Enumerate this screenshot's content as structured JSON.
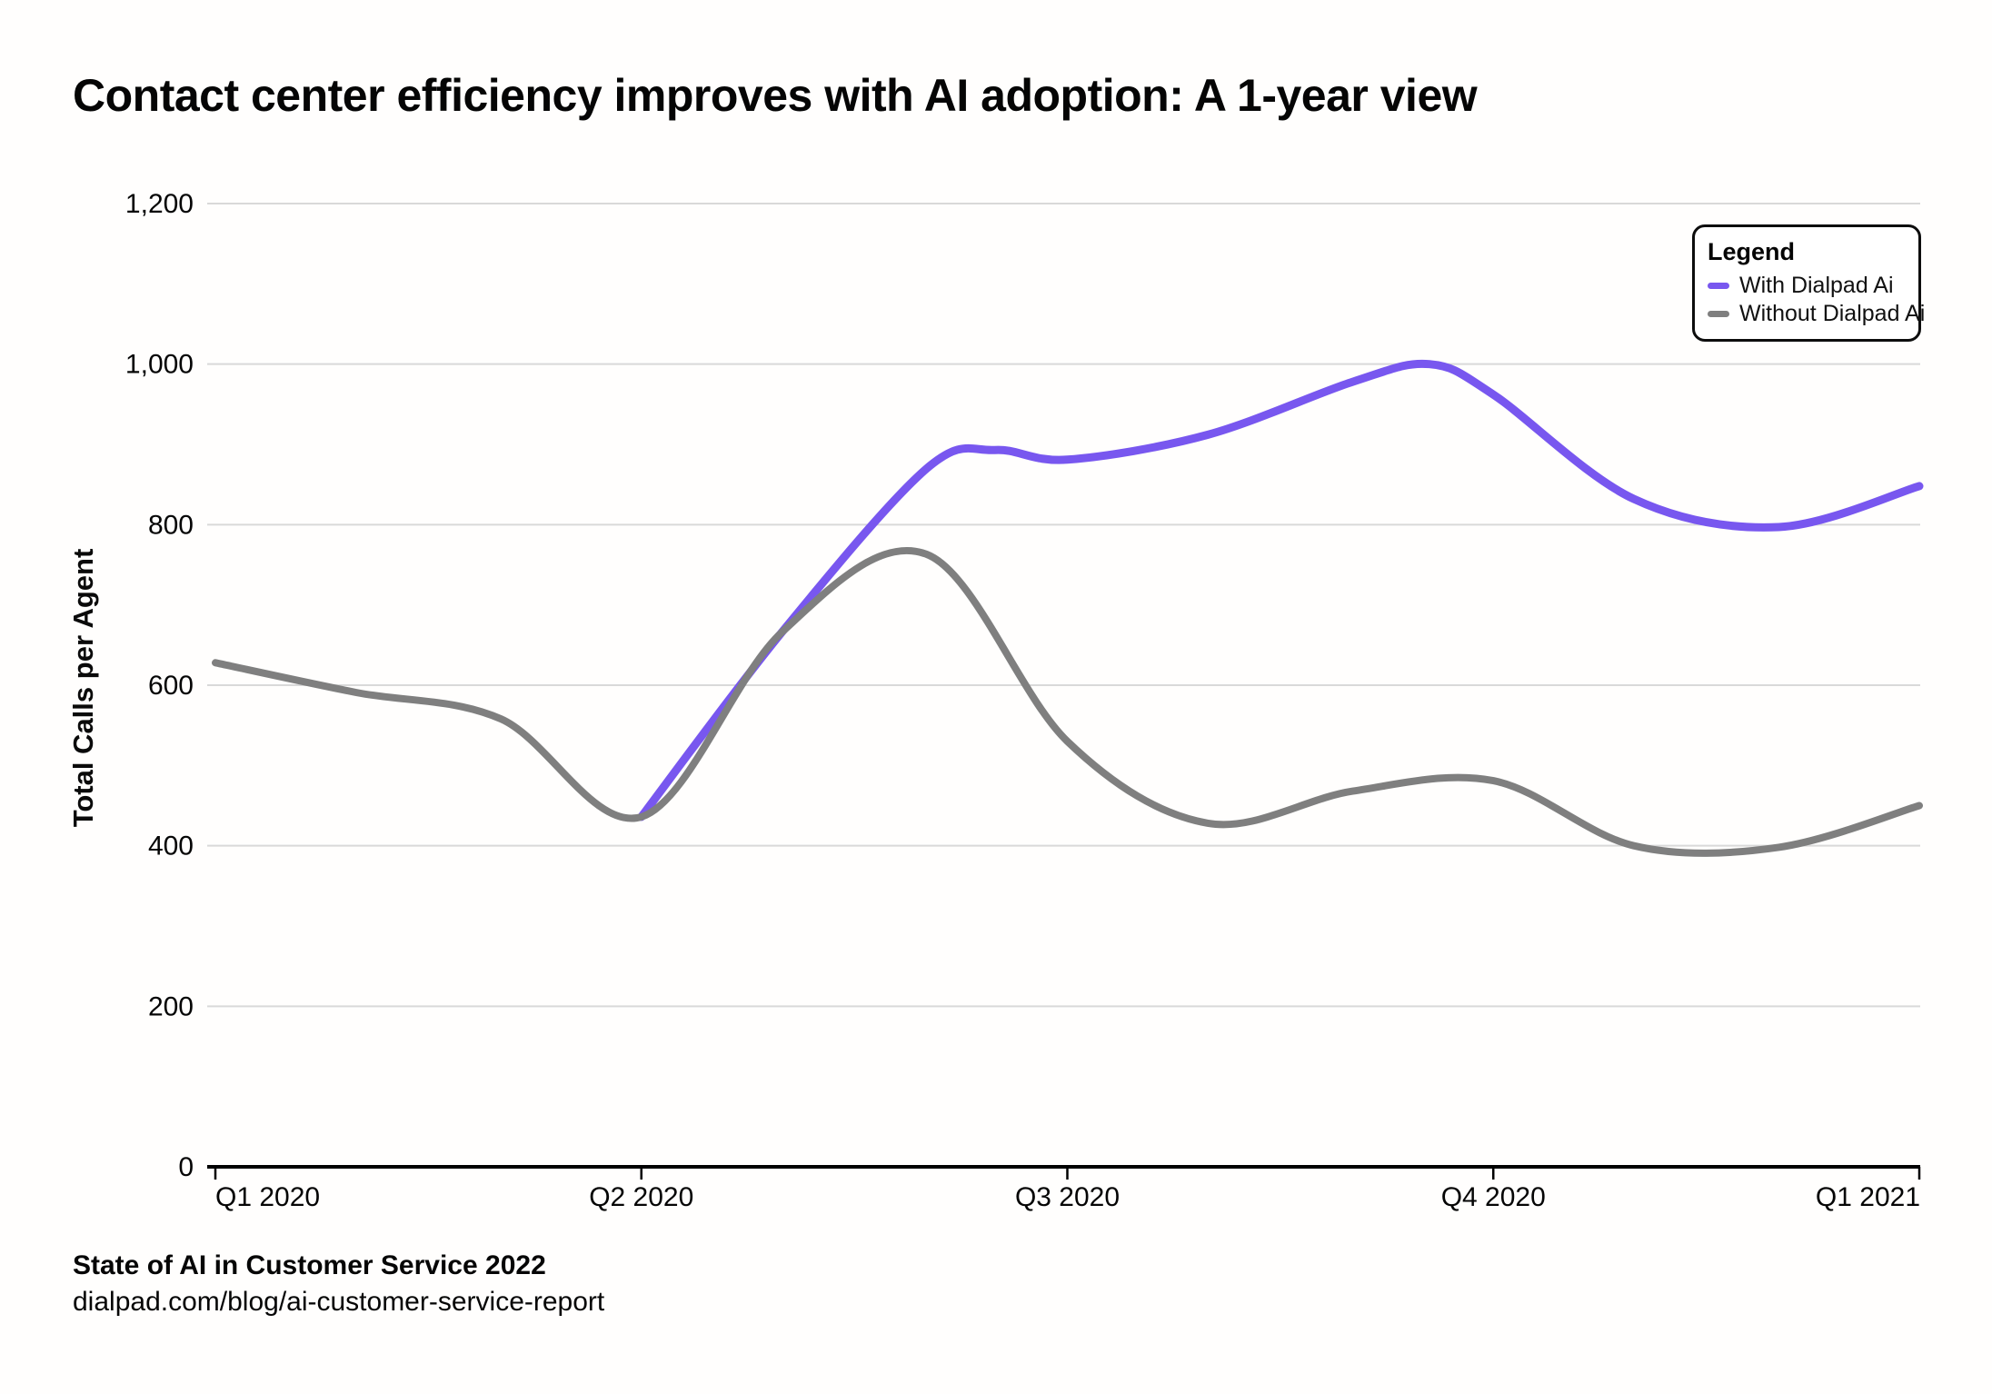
{
  "title": "Contact center efficiency improves with AI adoption: A 1-year view",
  "y_axis": {
    "title": "Total Calls per Agent",
    "ticks": [
      "0",
      "200",
      "400",
      "600",
      "800",
      "1,000",
      "1,200"
    ]
  },
  "x_axis": {
    "ticks": [
      "Q1 2020",
      "Q2 2020",
      "Q3 2020",
      "Q4 2020",
      "Q1 2021"
    ]
  },
  "legend": {
    "title": "Legend",
    "items": [
      {
        "label": "With Dialpad Ai",
        "color": "#7857ef"
      },
      {
        "label": "Without Dialpad Ai",
        "color": "#7f7f7f"
      }
    ]
  },
  "source": {
    "line1": "State of AI in Customer Service 2022",
    "line2": "dialpad.com/blog/ai-customer-service-report"
  },
  "colors": {
    "with_ai": "#7857ef",
    "without_ai": "#7f7f7f",
    "gridline": "#d9d9d9",
    "axis": "#000000",
    "text": "#050505",
    "background": "#ffffff"
  },
  "chart_data": {
    "type": "line",
    "title": "Contact center efficiency improves with AI adoption: A 1-year view",
    "xlabel": "",
    "ylabel": "Total Calls per Agent",
    "ylim": [
      0,
      1200
    ],
    "y_tick_step": 200,
    "grid": "horizontal",
    "legend_position": "top-right",
    "x_categories": [
      "Q1 2020",
      "Q2 2020",
      "Q3 2020",
      "Q4 2020",
      "Q1 2021"
    ],
    "x_tick_positions": [
      0,
      1,
      2,
      3,
      4
    ],
    "x_units": "quarters from Q1 2020 (0 = Q1 2020, 4 = Q1 2021)",
    "series": [
      {
        "name": "With Dialpad Ai",
        "color": "#7857ef",
        "points": [
          [
            1.0,
            436
          ],
          [
            1.33,
            666
          ],
          [
            1.67,
            870
          ],
          [
            1.83,
            893
          ],
          [
            2.0,
            881
          ],
          [
            2.33,
            912
          ],
          [
            2.67,
            978
          ],
          [
            2.85,
            1000
          ],
          [
            3.0,
            962
          ],
          [
            3.33,
            832
          ],
          [
            3.67,
            797
          ],
          [
            4.0,
            848
          ]
        ]
      },
      {
        "name": "Without Dialpad Ai",
        "color": "#7f7f7f",
        "points": [
          [
            0.0,
            628
          ],
          [
            0.33,
            591
          ],
          [
            0.67,
            558
          ],
          [
            1.0,
            436
          ],
          [
            1.33,
            666
          ],
          [
            1.67,
            763
          ],
          [
            2.0,
            530
          ],
          [
            2.33,
            428
          ],
          [
            2.67,
            468
          ],
          [
            3.0,
            481
          ],
          [
            3.33,
            400
          ],
          [
            3.67,
            398
          ],
          [
            4.0,
            450
          ]
        ]
      }
    ]
  }
}
